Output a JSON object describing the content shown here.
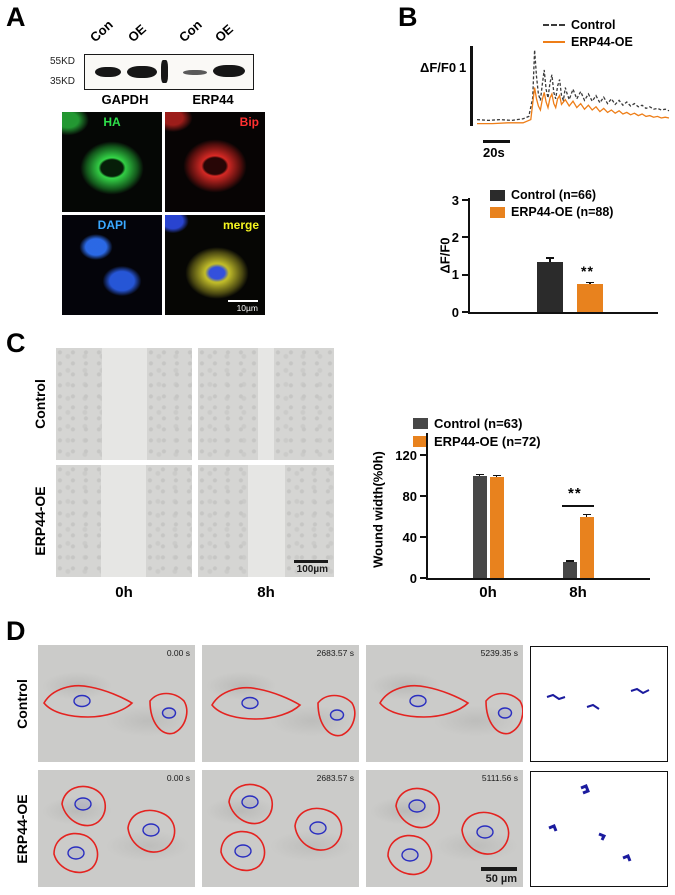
{
  "a": {
    "label": "A",
    "blot": {
      "lanes": [
        "Con",
        "OE",
        "Con",
        "OE"
      ],
      "m55": "55KD",
      "m35": "35KD",
      "gapdh": "GAPDH",
      "erp44": "ERP44"
    },
    "img": {
      "ha": "HA",
      "bip": "Bip",
      "dapi": "DAPI",
      "merge": "merge",
      "scale": "10µm"
    }
  },
  "b": {
    "label": "B",
    "trace_legend": {
      "control": "Control",
      "oe": "ERP44-OE"
    },
    "yscale_label": "ΔF/F0",
    "yscale_value": "1",
    "xscale": "20s",
    "legend": {
      "control": "Control (n=66)",
      "oe": "ERP44-OE (n=88)"
    },
    "ylabel": "ΔF/F0",
    "sig": "**"
  },
  "c": {
    "label": "C",
    "row_control": "Control",
    "row_oe": "ERP44-OE",
    "col_0h": "0h",
    "col_8h": "8h",
    "scale": "100µm",
    "legend": {
      "control": "Control (n=63)",
      "oe": "ERP44-OE (n=72)"
    },
    "ylabel": "Wound width(%0h)",
    "x_0h": "0h",
    "x_8h": "8h",
    "sig": "**"
  },
  "d": {
    "label": "D",
    "row_control": "Control",
    "row_oe": "ERP44-OE",
    "control_times": [
      "0.00 s",
      "2683.57 s",
      "5239.35 s"
    ],
    "oe_times": [
      "0.00 s",
      "2683.57 s",
      "5111.56 s"
    ],
    "scale": "50 µm"
  },
  "colors": {
    "control_black": "#2b2b2b",
    "control_gray": "#474747",
    "orange": "#E8821E",
    "trace_orange": "#EE7E18",
    "outline_red": "#e42320",
    "nucleus_blue": "#2a2ec0"
  },
  "chart_data": [
    {
      "id": "b-trace",
      "type": "line",
      "title": "Ca2+ transients over time",
      "y_scale_bar": {
        "label": "ΔF/F0",
        "value": 1
      },
      "x_scale_bar": {
        "label": "20s",
        "value": 20
      },
      "legend_position": "top-right",
      "series": [
        {
          "name": "Control",
          "style": "dashed",
          "color": "#3a3a3a",
          "points": [
            [
              0,
              0.18
            ],
            [
              6,
              0.17
            ],
            [
              12,
              0.18
            ],
            [
              18,
              0.17
            ],
            [
              24,
              0.19
            ],
            [
              27,
              0.22
            ],
            [
              29,
              0.45
            ],
            [
              30,
              1.05
            ],
            [
              31,
              0.72
            ],
            [
              32,
              0.5
            ],
            [
              33,
              0.42
            ],
            [
              34,
              0.62
            ],
            [
              35,
              0.8
            ],
            [
              36,
              0.56
            ],
            [
              37,
              0.45
            ],
            [
              38,
              0.64
            ],
            [
              39,
              0.74
            ],
            [
              40,
              0.52
            ],
            [
              41,
              0.44
            ],
            [
              42,
              0.6
            ],
            [
              43,
              0.68
            ],
            [
              44,
              0.48
            ],
            [
              45,
              0.42
            ],
            [
              46,
              0.58
            ],
            [
              47,
              0.5
            ],
            [
              48,
              0.43
            ],
            [
              50,
              0.56
            ],
            [
              52,
              0.44
            ],
            [
              54,
              0.53
            ],
            [
              56,
              0.42
            ],
            [
              58,
              0.5
            ],
            [
              60,
              0.41
            ],
            [
              62,
              0.48
            ],
            [
              64,
              0.39
            ],
            [
              66,
              0.46
            ],
            [
              68,
              0.38
            ],
            [
              70,
              0.44
            ],
            [
              72,
              0.37
            ],
            [
              74,
              0.42
            ],
            [
              76,
              0.36
            ],
            [
              78,
              0.4
            ],
            [
              80,
              0.35
            ],
            [
              82,
              0.38
            ],
            [
              84,
              0.34
            ],
            [
              86,
              0.36
            ],
            [
              88,
              0.32
            ],
            [
              90,
              0.34
            ],
            [
              92,
              0.31
            ],
            [
              94,
              0.32
            ],
            [
              96,
              0.3
            ],
            [
              98,
              0.31
            ],
            [
              100,
              0.29
            ]
          ]
        },
        {
          "name": "ERP44-OE",
          "style": "solid",
          "color": "#EE7E18",
          "points": [
            [
              0,
              0.13
            ],
            [
              8,
              0.13
            ],
            [
              16,
              0.14
            ],
            [
              24,
              0.14
            ],
            [
              28,
              0.18
            ],
            [
              30,
              0.58
            ],
            [
              31,
              0.44
            ],
            [
              32,
              0.35
            ],
            [
              33,
              0.3
            ],
            [
              34,
              0.43
            ],
            [
              35,
              0.52
            ],
            [
              36,
              0.4
            ],
            [
              37,
              0.33
            ],
            [
              38,
              0.45
            ],
            [
              39,
              0.5
            ],
            [
              40,
              0.38
            ],
            [
              41,
              0.33
            ],
            [
              42,
              0.44
            ],
            [
              43,
              0.48
            ],
            [
              44,
              0.37
            ],
            [
              46,
              0.43
            ],
            [
              48,
              0.35
            ],
            [
              50,
              0.41
            ],
            [
              52,
              0.33
            ],
            [
              54,
              0.38
            ],
            [
              56,
              0.31
            ],
            [
              58,
              0.36
            ],
            [
              60,
              0.3
            ],
            [
              62,
              0.34
            ],
            [
              64,
              0.28
            ],
            [
              66,
              0.32
            ],
            [
              68,
              0.27
            ],
            [
              70,
              0.3
            ],
            [
              72,
              0.26
            ],
            [
              74,
              0.29
            ],
            [
              76,
              0.25
            ],
            [
              78,
              0.27
            ],
            [
              80,
              0.24
            ],
            [
              82,
              0.26
            ],
            [
              84,
              0.23
            ],
            [
              86,
              0.25
            ],
            [
              88,
              0.22
            ],
            [
              90,
              0.23
            ],
            [
              92,
              0.21
            ],
            [
              94,
              0.22
            ],
            [
              96,
              0.2
            ],
            [
              98,
              0.21
            ],
            [
              100,
              0.2
            ]
          ]
        }
      ]
    },
    {
      "id": "b-bars",
      "type": "bar",
      "title": "Peak ΔF/F0",
      "categories": [
        ""
      ],
      "series": [
        {
          "name": "Control (n=66)",
          "color": "#2b2b2b",
          "values": [
            1.35
          ],
          "errors": [
            0.12
          ]
        },
        {
          "name": "ERP44-OE (n=88)",
          "color": "#E8821E",
          "values": [
            0.76
          ],
          "errors": [
            0.05
          ]
        }
      ],
      "ylabel": "ΔF/F0",
      "ylim": [
        0,
        3
      ],
      "yticks": [
        0,
        1,
        2,
        3
      ],
      "significance": {
        "label": "**",
        "on": "ERP44-OE (n=88)"
      }
    },
    {
      "id": "c-bars",
      "type": "bar",
      "title": "Wound width",
      "categories": [
        "0h",
        "8h"
      ],
      "series": [
        {
          "name": "Control (n=63)",
          "color": "#474747",
          "values": [
            100,
            16
          ],
          "errors": [
            2,
            1.5
          ]
        },
        {
          "name": "ERP44-OE (n=72)",
          "color": "#E8821E",
          "values": [
            99,
            60
          ],
          "errors": [
            2,
            3
          ]
        }
      ],
      "ylabel": "Wound width(%0h)",
      "ylim": [
        0,
        140
      ],
      "yticks": [
        0,
        40,
        80,
        120
      ],
      "significance": {
        "label": "**",
        "at": "8h"
      }
    }
  ]
}
